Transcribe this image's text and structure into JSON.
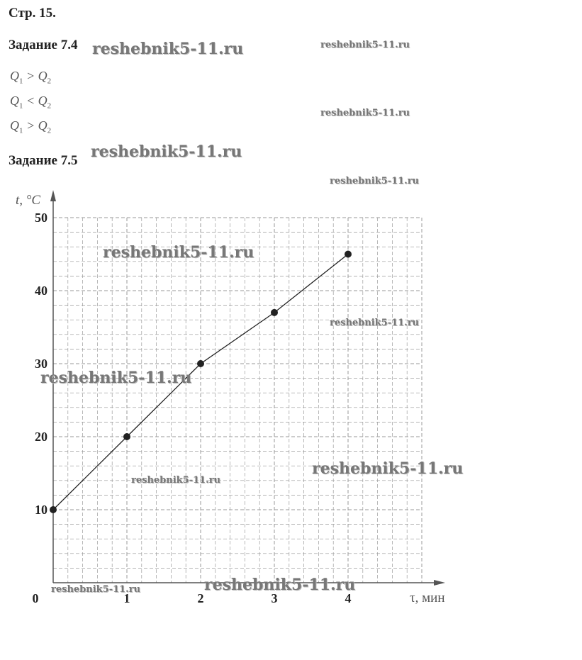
{
  "page_label": "Стр. 15.",
  "task_74": {
    "title": "Задание 7.4",
    "answers": [
      {
        "left": "Q",
        "left_sub": "1",
        "op": ">",
        "right": "Q",
        "right_sub": "2"
      },
      {
        "left": "Q",
        "left_sub": "1",
        "op": "<",
        "right": "Q",
        "right_sub": "2"
      },
      {
        "left": "Q",
        "left_sub": "1",
        "op": ">",
        "right": "Q",
        "right_sub": "2"
      }
    ]
  },
  "task_75": {
    "title": "Задание 7.5"
  },
  "watermark_text": "reshebnik5-11.ru",
  "chart_data": {
    "type": "line",
    "xlabel": "τ, мин",
    "ylabel": "t, °C",
    "x_ticks": [
      "0",
      "1",
      "2",
      "3",
      "4"
    ],
    "y_ticks": [
      "10",
      "20",
      "30",
      "40",
      "50"
    ],
    "xlim": [
      0,
      5
    ],
    "ylim": [
      0,
      50
    ],
    "grid": true,
    "x": [
      0,
      1,
      2,
      3,
      4
    ],
    "y": [
      10,
      20,
      30,
      37,
      45
    ],
    "line_color": "#222222",
    "grid_color": "#9a9a9a"
  }
}
